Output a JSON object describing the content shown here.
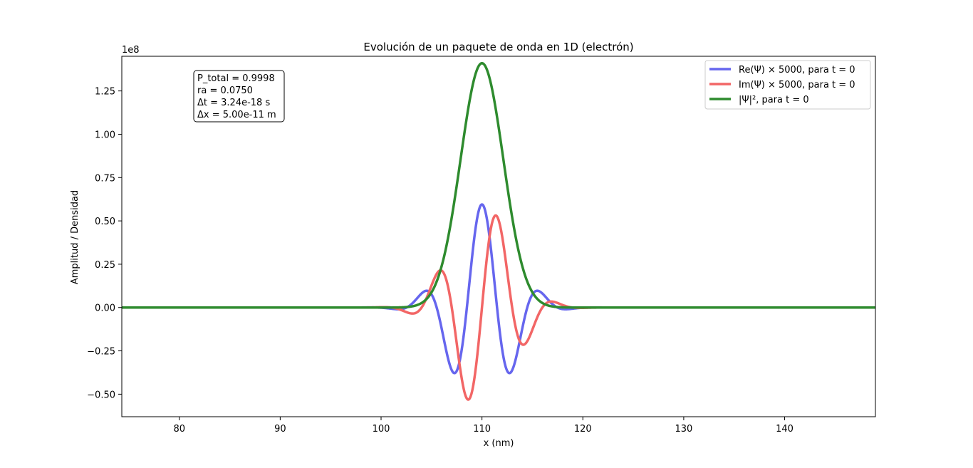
{
  "chart_data": {
    "type": "line",
    "title": "Evolución de un paquete de onda en 1D (electrón)",
    "xlabel": "x (nm)",
    "ylabel": "Amplitud / Densidad",
    "y_offset_text": "1e8",
    "xlim": [
      74.3,
      149.0
    ],
    "ylim": [
      -0.63,
      1.45
    ],
    "x_ticks": [
      80,
      90,
      100,
      110,
      120,
      130,
      140
    ],
    "x_tick_labels": [
      "80",
      "90",
      "100",
      "110",
      "120",
      "130",
      "140"
    ],
    "y_ticks": [
      -0.5,
      -0.25,
      0.0,
      0.25,
      0.5,
      0.75,
      1.0,
      1.25
    ],
    "y_tick_labels": [
      "−0.50",
      "−0.25",
      "0.00",
      "0.25",
      "0.50",
      "0.75",
      "1.00",
      "1.25"
    ],
    "grid": false,
    "legend_position": "top-right",
    "series": [
      {
        "name": "Re(Ψ) × 5000, para t = 0",
        "color": "#6666ee",
        "model": {
          "kind": "re",
          "center": 110.0,
          "sigma": 3.0,
          "k_per_nm": 1.05,
          "amplitude": 0.595
        }
      },
      {
        "name": "Im(Ψ) × 5000, para t = 0",
        "color": "#f26666",
        "model": {
          "kind": "im",
          "center": 110.0,
          "sigma": 3.0,
          "k_per_nm": 1.05,
          "amplitude": 0.595
        }
      },
      {
        "name": "|Ψ|², para t = 0",
        "color": "#2e8b2e",
        "model": {
          "kind": "density",
          "center": 110.0,
          "sigma": 3.0,
          "amplitude": 1.41
        }
      }
    ],
    "annotation": {
      "lines": [
        "P_total = 0.9998",
        "ra = 0.0750",
        "Δt = 3.24e-18 s",
        "Δx = 5.00e-11 m"
      ]
    }
  }
}
